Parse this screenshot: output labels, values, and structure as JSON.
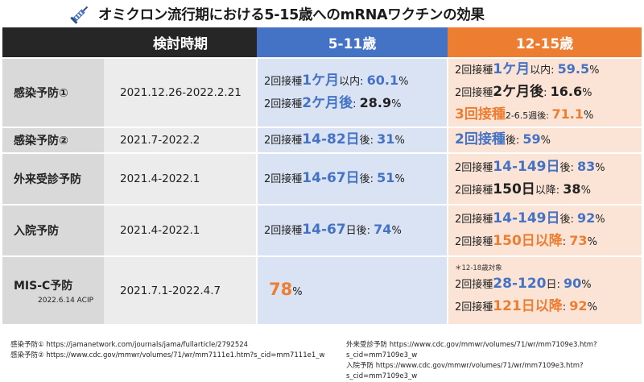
{
  "title": "オミクロン流行期における5-15歳へのmRNAワクチンの効果",
  "colors": {
    "dark_header": "#262626",
    "blue": "#4472c4",
    "orange": "#ed7d31",
    "blue_bg": "#dae3f3",
    "orange_bg": "#fbe4d6"
  },
  "header": {
    "period": "検討時期",
    "age_5_11": "5-11歳",
    "age_12_15": "12-15歳"
  },
  "rows": [
    {
      "label": "感染予防①",
      "period": "2021.12.26-2022.2.21",
      "c5": [
        {
          "a": "2回接種",
          "b": "1ケ月",
          "c": "以内: ",
          "d": "60.1",
          "e": "%"
        },
        {
          "a": "2回接種",
          "b": "2ケ月後",
          "c": ": ",
          "d": "28.9",
          "e": "%"
        }
      ],
      "c12": [
        {
          "a": "2回接種",
          "b": "1ケ月",
          "c": "以内: ",
          "d": "59.5",
          "e": "%"
        },
        {
          "a": "2回接種",
          "b": "2ケ月後",
          "c": ": ",
          "d": "16.6",
          "e": "%"
        },
        {
          "a": "3回接種",
          "b": "2-6.5週後: ",
          "d": "71.1",
          "e": "%"
        }
      ]
    },
    {
      "label": "感染予防②",
      "period": "2021.7-2022.2",
      "c5": [
        {
          "a": "2回接種",
          "b": "14-82日",
          "c": "後: ",
          "d": "31",
          "e": "%"
        }
      ],
      "c12": [
        {
          "a": "2回接種",
          "c": "後: ",
          "d": "59",
          "e": "%"
        }
      ]
    },
    {
      "label": "外来受診予防",
      "period": "2021.4-2022.1",
      "c5": [
        {
          "a": "2回接種",
          "b": "14-67日",
          "c": "後: ",
          "d": "51",
          "e": "%"
        }
      ],
      "c12": [
        {
          "a": "2回接種",
          "b": "14-149日",
          "c": "後: ",
          "d": "83",
          "e": "%"
        },
        {
          "a": "2回接種",
          "b": "150日",
          "c": "以降: ",
          "d": "38",
          "e": "%"
        }
      ]
    },
    {
      "label": "入院予防",
      "period": "2021.4-2022.1",
      "c5": [
        {
          "a": "2回接種",
          "b": "14-67",
          "c": "日後: ",
          "d": "74",
          "e": "%"
        }
      ],
      "c12": [
        {
          "a": "2回接種",
          "b": "14-149日",
          "c": "後: ",
          "d": "92",
          "e": "%"
        },
        {
          "a": "2回接種",
          "b": "150日以降",
          "c": ": ",
          "d": "73",
          "e": "%"
        }
      ]
    },
    {
      "label": "MIS-C予防",
      "sublabel": "2022.6.14 ACIP",
      "period": "2021.7.1-2022.4.7",
      "c5_value": "78",
      "c5_unit": "%",
      "c12_note": "＊12-18歳対象",
      "c12": [
        {
          "a": "2回接種",
          "b": "28-120",
          "c": "日: ",
          "d": "90",
          "e": "%"
        },
        {
          "a": "2回接種",
          "b": "121日以降",
          "c": ": ",
          "d": "92",
          "e": "%"
        }
      ]
    }
  ],
  "footer": {
    "left1": "感染予防① https://jamanetwork.com/journals/jama/fullarticle/2792524",
    "left2": "感染予防② https://www.cdc.gov/mmwr/volumes/71/wr/mm7111e1.htm?s_cid=mm7111e1_w",
    "right1": "外来受診予防 https://www.cdc.gov/mmwr/volumes/71/wr/mm7109e3.htm?s_cid=mm7109e3_w",
    "right2": "入院予防 https://www.cdc.gov/mmwr/volumes/71/wr/mm7109e3.htm?s_cid=mm7109e3_w"
  }
}
